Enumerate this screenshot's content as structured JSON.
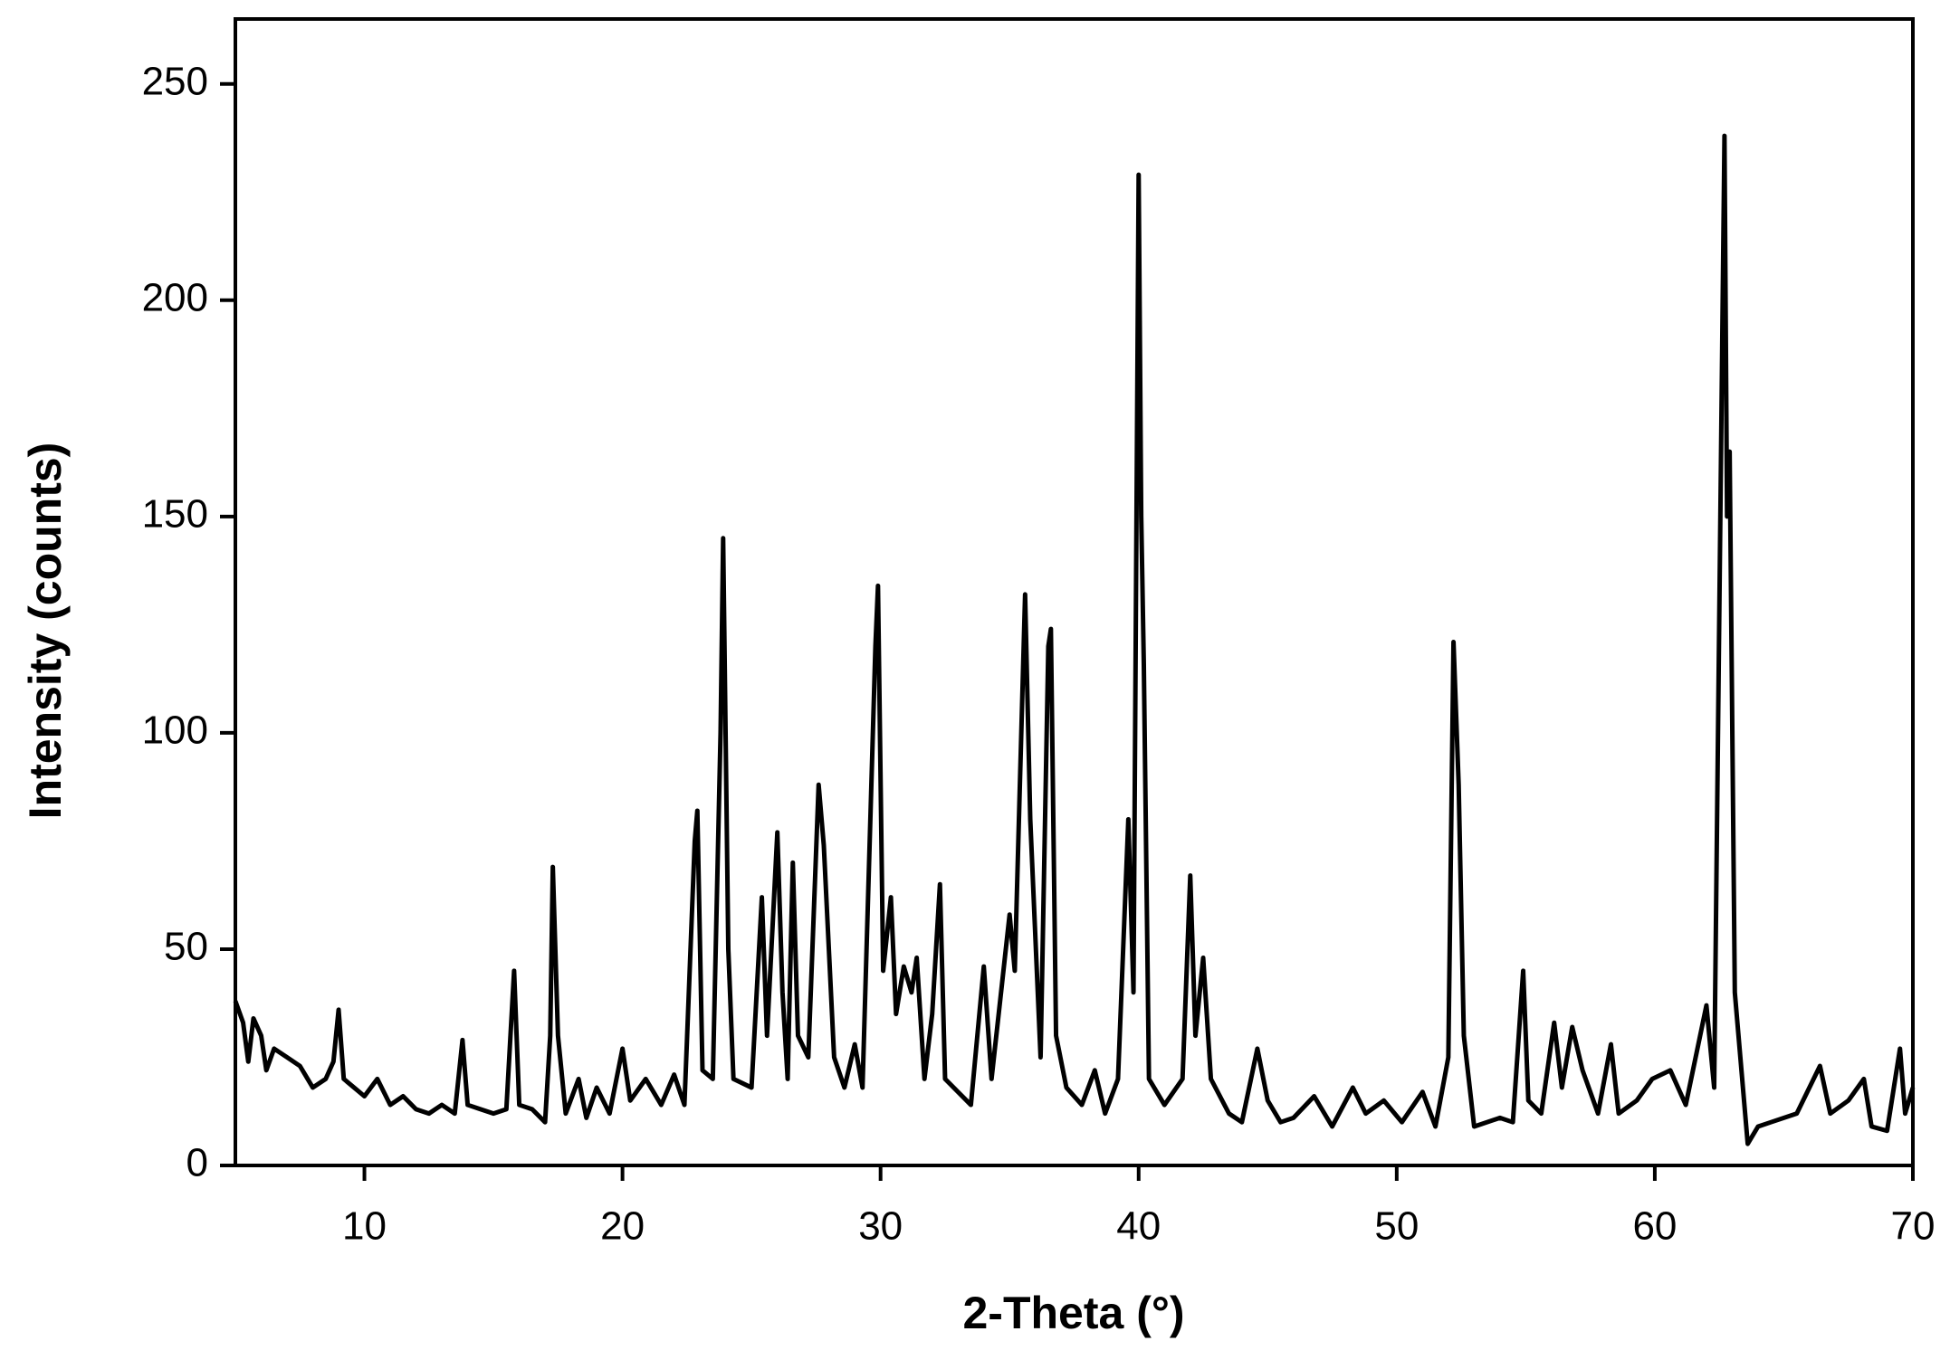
{
  "chart_data": {
    "type": "line",
    "xlabel": "2-Theta (°)",
    "ylabel": "Intensity (counts)",
    "xlim": [
      5,
      70
    ],
    "ylim": [
      0,
      265
    ],
    "xticks": [
      10,
      20,
      30,
      40,
      50,
      60,
      70
    ],
    "yticks": [
      0,
      50,
      100,
      150,
      200,
      250
    ],
    "grid": false,
    "series": [
      {
        "color": "#000000",
        "x": [
          5,
          5.3,
          5.5,
          5.7,
          6,
          6.2,
          6.5,
          7,
          7.5,
          8,
          8.5,
          8.8,
          9,
          9.2,
          9.6,
          10,
          10.5,
          11,
          11.5,
          12,
          12.5,
          13,
          13.5,
          13.8,
          14,
          14.5,
          15,
          15.5,
          15.8,
          16,
          16.5,
          17,
          17.2,
          17.3,
          17.5,
          17.8,
          18.3,
          18.6,
          19,
          19.5,
          20,
          20.3,
          20.9,
          21.5,
          22,
          22.4,
          22.8,
          22.9,
          23.1,
          23.5,
          23.8,
          23.9,
          24.1,
          24.3,
          25,
          25.4,
          25.6,
          26,
          26.2,
          26.4,
          26.6,
          26.8,
          27.2,
          27.6,
          27.8,
          28.2,
          28.6,
          29,
          29.3,
          29.8,
          29.9,
          30.1,
          30.4,
          30.6,
          30.9,
          31.2,
          31.4,
          31.7,
          32,
          32.3,
          32.5,
          33,
          33.5,
          34,
          34.3,
          35,
          35.2,
          35.6,
          35.8,
          36.2,
          36.5,
          36.6,
          36.8,
          37.2,
          37.8,
          38.3,
          38.7,
          39.2,
          39.6,
          39.8,
          40,
          40.1,
          40.2,
          40.4,
          41,
          41.7,
          42,
          42.2,
          42.5,
          42.8,
          43.5,
          44,
          44.6,
          45,
          45.5,
          46,
          46.8,
          47.5,
          48.3,
          48.8,
          49.5,
          50.2,
          51,
          51.5,
          52,
          52.2,
          52.4,
          52.6,
          53,
          54,
          54.5,
          54.9,
          55.1,
          55.6,
          56.1,
          56.4,
          56.8,
          57.2,
          57.8,
          58.3,
          58.6,
          59.3,
          59.9,
          60.6,
          61.2,
          62,
          62.3,
          62.7,
          62.8,
          62.9,
          63.1,
          63.6,
          64,
          64.5,
          65.5,
          66.4,
          66.8,
          67.5,
          68.1,
          68.4,
          69,
          69.5,
          69.7,
          70
        ],
        "values": [
          38,
          33,
          24,
          34,
          30,
          22,
          27,
          25,
          23,
          18,
          20,
          24,
          36,
          20,
          18,
          16,
          20,
          14,
          16,
          13,
          12,
          14,
          12,
          29,
          14,
          13,
          12,
          13,
          45,
          14,
          13,
          10,
          30,
          69,
          30,
          12,
          20,
          11,
          18,
          12,
          27,
          15,
          20,
          14,
          21,
          14,
          75,
          82,
          22,
          20,
          100,
          145,
          50,
          20,
          18,
          62,
          30,
          77,
          40,
          20,
          70,
          30,
          25,
          88,
          74,
          25,
          18,
          28,
          18,
          120,
          134,
          45,
          62,
          35,
          46,
          40,
          48,
          20,
          35,
          65,
          20,
          17,
          14,
          46,
          20,
          58,
          45,
          132,
          80,
          25,
          120,
          124,
          30,
          18,
          14,
          22,
          12,
          20,
          80,
          40,
          229,
          150,
          116,
          20,
          14,
          20,
          67,
          30,
          48,
          20,
          12,
          10,
          27,
          15,
          10,
          11,
          16,
          9,
          18,
          12,
          15,
          10,
          17,
          9,
          25,
          121,
          88,
          30,
          9,
          11,
          10,
          45,
          15,
          12,
          33,
          18,
          32,
          22,
          12,
          28,
          12,
          15,
          20,
          22,
          14,
          37,
          18,
          238,
          150,
          165,
          40,
          5,
          9,
          10,
          12,
          23,
          12,
          15,
          20,
          9,
          8,
          27,
          12,
          18
        ]
      }
    ]
  }
}
